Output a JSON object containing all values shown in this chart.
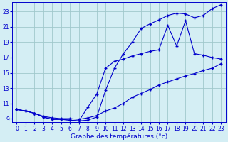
{
  "title": "Graphe des températures (°c)",
  "background_color": "#d4eef4",
  "line_color": "#0000cc",
  "grid_color": "#a0c8cc",
  "xlim": [
    -0.5,
    23.5
  ],
  "ylim": [
    8.5,
    24.2
  ],
  "xticks": [
    0,
    1,
    2,
    3,
    4,
    5,
    6,
    7,
    8,
    9,
    10,
    11,
    12,
    13,
    14,
    15,
    16,
    17,
    18,
    19,
    20,
    21,
    22,
    23
  ],
  "yticks": [
    9,
    11,
    13,
    15,
    17,
    19,
    21,
    23
  ],
  "line1_x": [
    0,
    1,
    2,
    3,
    4,
    5,
    6,
    7,
    8,
    9,
    10,
    11,
    12,
    13,
    14,
    15,
    16,
    17,
    18,
    19,
    20,
    21,
    22,
    23
  ],
  "line1_y": [
    10.2,
    10.0,
    9.7,
    9.2,
    8.9,
    8.9,
    8.8,
    8.7,
    8.8,
    9.2,
    12.7,
    15.6,
    17.5,
    19.0,
    20.8,
    21.4,
    21.9,
    22.5,
    22.8,
    22.7,
    22.2,
    22.5,
    23.4,
    23.9
  ],
  "line2_x": [
    0,
    1,
    2,
    3,
    4,
    5,
    6,
    7,
    8,
    9,
    10,
    11,
    12,
    13,
    14,
    15,
    16,
    17,
    18,
    19,
    20,
    21,
    22,
    23
  ],
  "line2_y": [
    10.2,
    10.0,
    9.7,
    9.2,
    8.9,
    8.9,
    8.8,
    8.7,
    10.5,
    12.2,
    15.6,
    16.5,
    16.8,
    17.2,
    17.5,
    17.8,
    18.0,
    21.2,
    18.5,
    21.8,
    17.5,
    17.3,
    17.0,
    16.8
  ],
  "line3_x": [
    0,
    1,
    2,
    3,
    4,
    5,
    6,
    7,
    8,
    9,
    10,
    11,
    12,
    13,
    14,
    15,
    16,
    17,
    18,
    19,
    20,
    21,
    22,
    23
  ],
  "line3_y": [
    10.2,
    10.0,
    9.7,
    9.3,
    9.1,
    9.0,
    9.0,
    8.9,
    9.1,
    9.4,
    10.0,
    10.4,
    11.0,
    11.8,
    12.3,
    12.8,
    13.4,
    13.8,
    14.2,
    14.6,
    14.9,
    15.3,
    15.6,
    16.2
  ],
  "marker": "+",
  "markersize": 3,
  "linewidth": 0.8,
  "xlabel_fontsize": 6.5,
  "tick_fontsize": 5.5
}
